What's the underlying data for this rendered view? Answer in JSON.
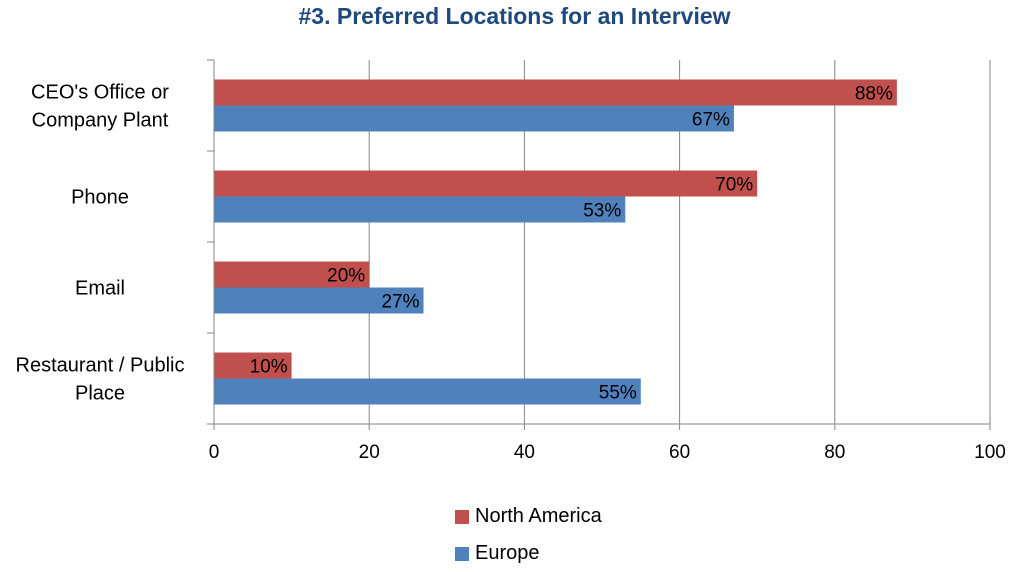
{
  "chart_data": {
    "type": "bar",
    "orientation": "horizontal",
    "title": "#3. Preferred Locations for an Interview",
    "categories": [
      [
        "CEO's Office or",
        "Company Plant"
      ],
      [
        "Phone"
      ],
      [
        "Email"
      ],
      [
        "Restaurant / Public",
        "Place"
      ]
    ],
    "series": [
      {
        "name": "North America",
        "color": "#c0504d",
        "values": [
          88,
          70,
          20,
          10
        ],
        "labels": [
          "88%",
          "70%",
          "20%",
          "10%"
        ]
      },
      {
        "name": "Europe",
        "color": "#4f81bd",
        "values": [
          67,
          53,
          27,
          55
        ],
        "labels": [
          "67%",
          "53%",
          "27%",
          "55%"
        ]
      }
    ],
    "xlim": [
      0,
      100
    ],
    "xticks": [
      0,
      20,
      40,
      60,
      80,
      100
    ],
    "grid": true,
    "legend_position": "bottom"
  }
}
